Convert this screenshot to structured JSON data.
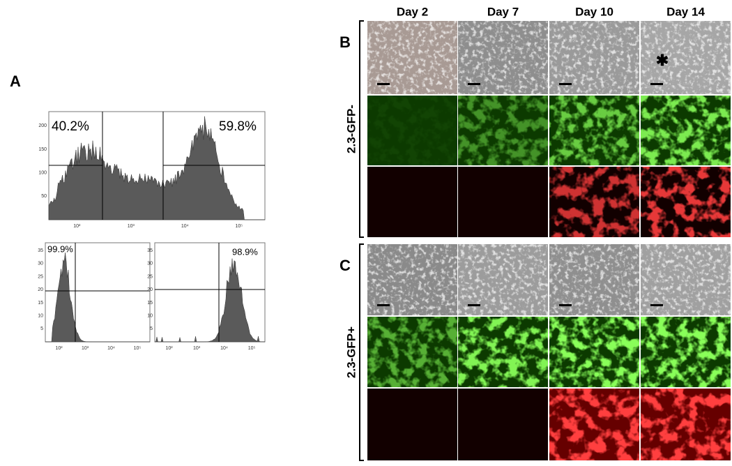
{
  "panel_a": {
    "label": "A",
    "top_histogram": {
      "left_percent": "40.2%",
      "right_percent": "59.8%",
      "y_ticks": [
        "50",
        "100",
        "150",
        "200"
      ],
      "x_ticks": [
        "10²",
        "10³",
        "10⁴",
        "10⁵"
      ]
    },
    "bottom_left_histogram": {
      "percent": "99.9%",
      "y_ticks": [
        "5",
        "10",
        "15",
        "20",
        "25",
        "30",
        "35"
      ],
      "x_ticks": [
        "10²",
        "10³",
        "10⁴",
        "10⁵"
      ]
    },
    "bottom_right_histogram": {
      "percent": "98.9%",
      "y_ticks": [
        "5",
        "10",
        "15",
        "20",
        "25",
        "30",
        "35"
      ],
      "x_ticks": [
        "10²",
        "10³",
        "10⁴",
        "10⁵"
      ]
    }
  },
  "columns": [
    "Day 2",
    "Day 7",
    "Day 10",
    "Day 14"
  ],
  "panel_b": {
    "label": "B",
    "row_label": "2.3-GFP-"
  },
  "panel_c": {
    "label": "C",
    "row_label": "2.3-GFP+"
  }
}
